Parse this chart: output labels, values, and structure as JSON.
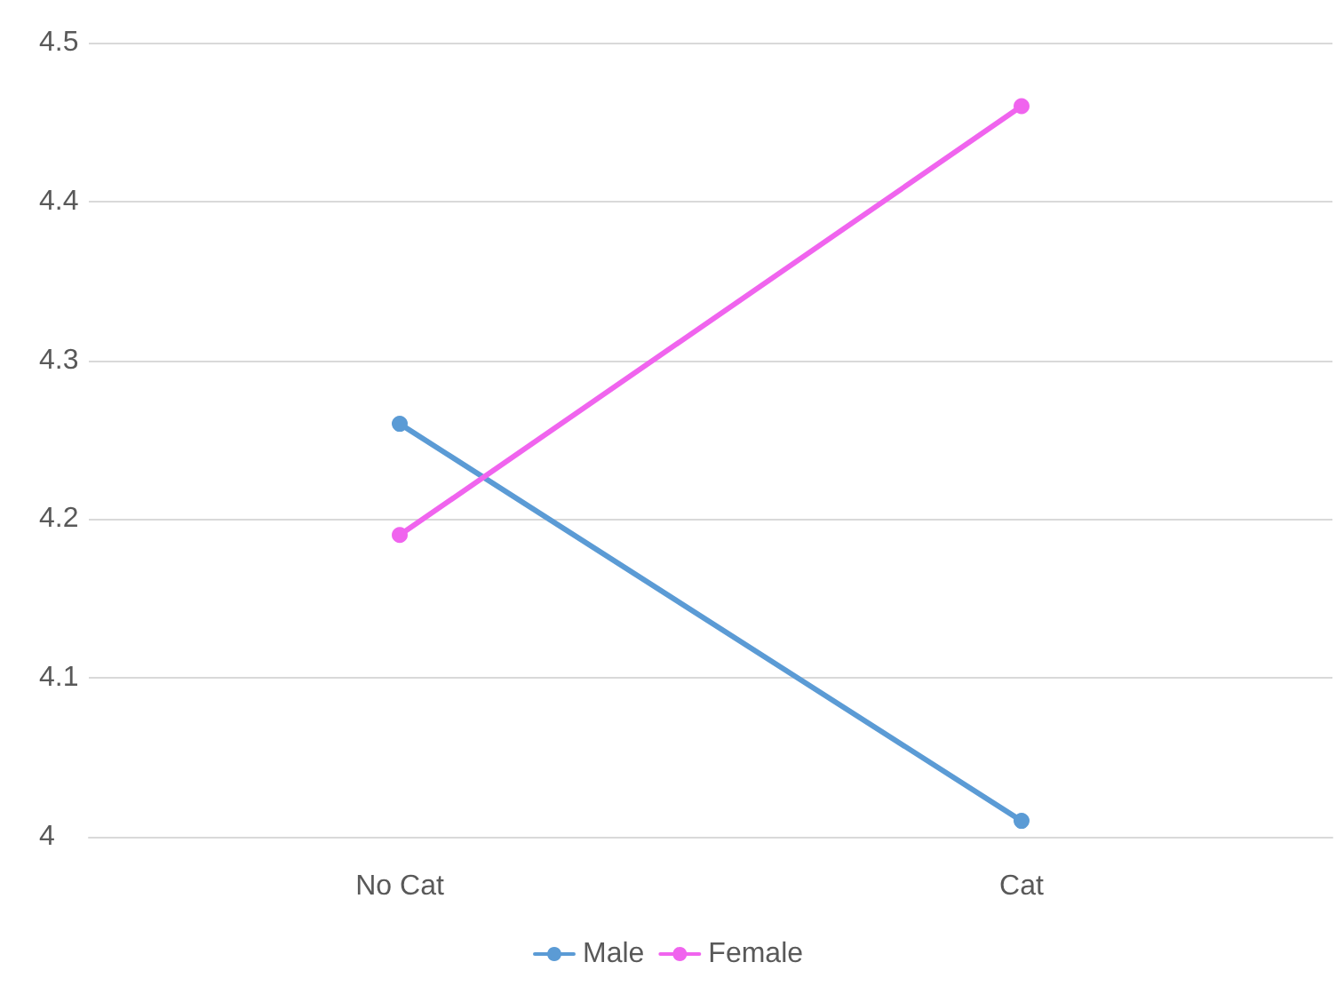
{
  "chart_data": {
    "type": "line",
    "categories": [
      "No Cat",
      "Cat"
    ],
    "series": [
      {
        "name": "Male",
        "color": "#5b9bd5",
        "values": [
          4.26,
          4.01
        ]
      },
      {
        "name": "Female",
        "color": "#f064ee",
        "values": [
          4.19,
          4.46
        ]
      }
    ],
    "ylim": [
      4,
      4.5
    ],
    "yticks": [
      4,
      4.1,
      4.2,
      4.3,
      4.4,
      4.5
    ],
    "grid": "y",
    "legend": "bottom",
    "marker": "circle",
    "line_style": "solid"
  }
}
